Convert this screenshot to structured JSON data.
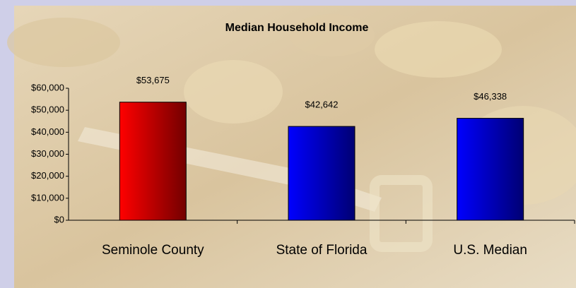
{
  "chart_data": {
    "type": "bar",
    "title": "Median Household Income",
    "categories": [
      "Seminole County",
      "State of Florida",
      "U.S. Median"
    ],
    "values": [
      53675,
      42642,
      46338
    ],
    "value_labels": [
      "$53,675",
      "$42,642",
      "$46,338"
    ],
    "colors": [
      "#ff0000",
      "#0000ff",
      "#0000ff"
    ],
    "ylim": [
      0,
      60000
    ],
    "yticks": [
      {
        "value": 0,
        "label": "$0"
      },
      {
        "value": 10000,
        "label": "$10,000"
      },
      {
        "value": 20000,
        "label": "$20,000"
      },
      {
        "value": 30000,
        "label": "$30,000"
      },
      {
        "value": 40000,
        "label": "$40,000"
      },
      {
        "value": 50000,
        "label": "$50,000"
      },
      {
        "value": 60000,
        "label": "$60,000"
      }
    ],
    "grid": false
  }
}
